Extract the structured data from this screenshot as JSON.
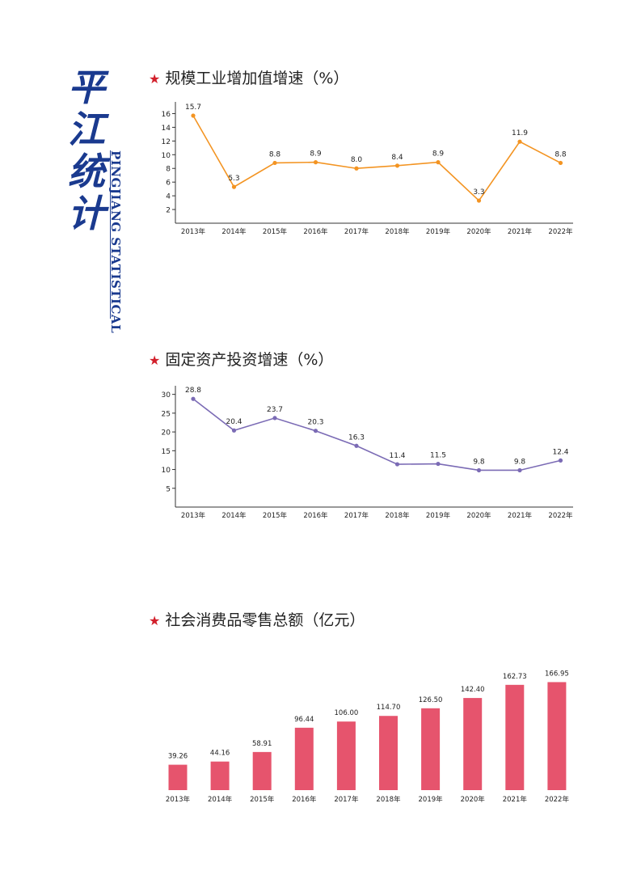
{
  "logo": {
    "chars": [
      "平",
      "江",
      "统",
      "计"
    ],
    "english": "PINGJIANG STATISTICAL"
  },
  "colors": {
    "logo": "#1a3a8f",
    "star": "#d21f2b",
    "industry_line": "#f39422",
    "investment_line": "#7b6bb5",
    "retail_bar": "#e6546d"
  },
  "chart_data": [
    {
      "type": "line",
      "title": "规模工业增加值增速（%）",
      "categories": [
        "2013年",
        "2014年",
        "2015年",
        "2016年",
        "2017年",
        "2018年",
        "2019年",
        "2020年",
        "2021年",
        "2022年"
      ],
      "values": [
        15.7,
        5.3,
        8.8,
        8.9,
        8.0,
        8.4,
        8.9,
        3.3,
        11.9,
        8.8
      ],
      "value_labels": [
        "15.7",
        "5.3",
        "8.8",
        "8.9",
        "8.0",
        "8.4",
        "8.9",
        "3.3",
        "11.9",
        "8.8"
      ],
      "yticks": [
        2,
        4,
        6,
        8,
        10,
        12,
        14,
        16
      ],
      "ylim": [
        0,
        17
      ],
      "xlabel": "",
      "ylabel": "",
      "grid": false
    },
    {
      "type": "line",
      "title": "固定资产投资增速（%）",
      "categories": [
        "2013年",
        "2014年",
        "2015年",
        "2016年",
        "2017年",
        "2018年",
        "2019年",
        "2020年",
        "2021年",
        "2022年"
      ],
      "values": [
        28.8,
        20.4,
        23.7,
        20.3,
        16.3,
        11.4,
        11.5,
        9.8,
        9.8,
        12.4
      ],
      "value_labels": [
        "28.8",
        "20.4",
        "23.7",
        "20.3",
        "16.3",
        "11.4",
        "11.5",
        "9.8",
        "9.8",
        "12.4"
      ],
      "yticks": [
        5,
        10,
        15,
        20,
        25,
        30
      ],
      "ylim": [
        0,
        31
      ],
      "xlabel": "",
      "ylabel": "",
      "grid": false
    },
    {
      "type": "bar",
      "title": "社会消费品零售总额（亿元）",
      "categories": [
        "2013年",
        "2014年",
        "2015年",
        "2016年",
        "2017年",
        "2018年",
        "2019年",
        "2020年",
        "2021年",
        "2022年"
      ],
      "values": [
        39.26,
        44.16,
        58.91,
        96.44,
        106.0,
        114.7,
        126.5,
        142.4,
        162.73,
        166.95
      ],
      "value_labels": [
        "39.26",
        "44.16",
        "58.91",
        "96.44",
        "106.00",
        "114.70",
        "126.50",
        "142.40",
        "162.73",
        "166.95"
      ],
      "ylim": [
        0,
        170
      ],
      "xlabel": "",
      "ylabel": "",
      "grid": false
    }
  ]
}
